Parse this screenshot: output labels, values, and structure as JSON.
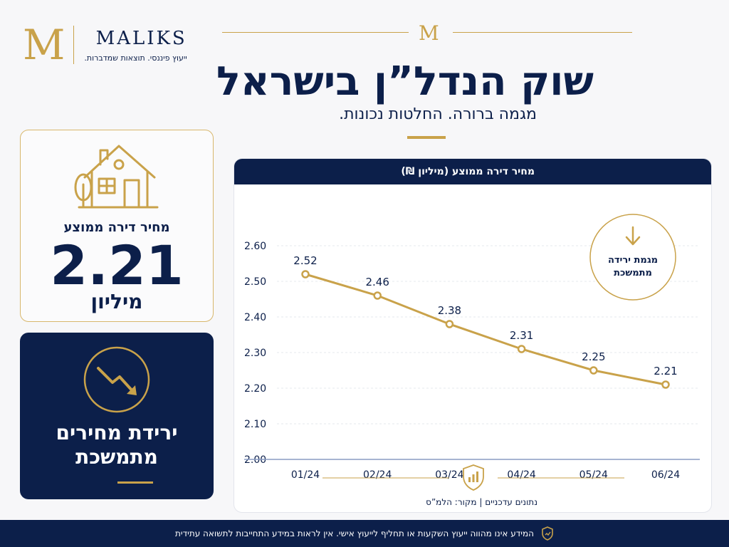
{
  "brand": {
    "initial": "M",
    "name": "MALIKS",
    "tagline": "ייעוץ פיננסי. תוצאות שמדברות."
  },
  "header": {
    "title": "שוק הנדל”ן בישראל",
    "subtitle": "מגמה ברורה. החלטות נכונות."
  },
  "price_card": {
    "label": "מחיר דירה ממוצע",
    "value": "2.21",
    "unit": "מיליון",
    "icon": "house-icon"
  },
  "trend_card": {
    "text_line1": "ירידת מחירים",
    "text_line2": "מתמשכת",
    "icon": "trend-down-icon"
  },
  "chart_data": {
    "type": "line",
    "title": "מחיר דירה ממוצע (מיליון ₪)",
    "categories": [
      "01/24",
      "02/24",
      "03/24",
      "04/24",
      "05/24",
      "06/24"
    ],
    "values": [
      2.52,
      2.46,
      2.38,
      2.31,
      2.25,
      2.21
    ],
    "value_labels": [
      "2.52",
      "2.46",
      "2.38",
      "2.31",
      "2.25",
      "2.21"
    ],
    "ylim": [
      2.0,
      2.6
    ],
    "yticks": [
      "2.00",
      "2.10",
      "2.20",
      "2.30",
      "2.40",
      "2.50",
      "2.60"
    ],
    "grid": true,
    "annotation": {
      "line1": "מגמת ירידה",
      "line2": "מתמשכת"
    },
    "source": "נתונים עדכניים | מקור: הלמ”ס"
  },
  "colors": {
    "navy": "#0c1f4a",
    "gold": "#c9a24a",
    "background": "#f7f7f9"
  },
  "footer": {
    "disclaimer": "המידע אינו מהווה ייעוץ השקעות או תחליף לייעוץ אישי. אין לראות במידע התחייבות לתשואה עתידית"
  }
}
